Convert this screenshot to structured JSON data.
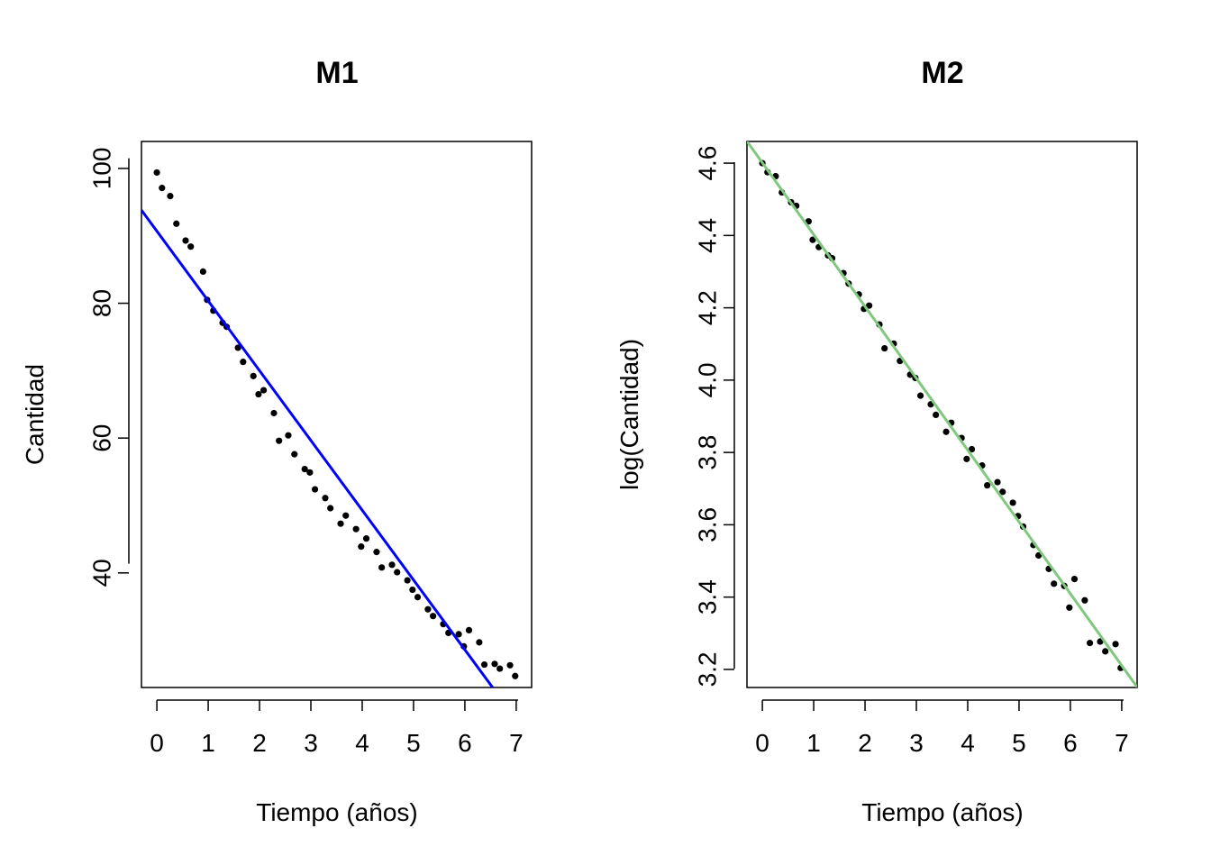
{
  "chart_data": [
    {
      "type": "scatter",
      "title": "M1",
      "xlabel": "Tiempo (años)",
      "ylabel": "Cantidad",
      "xlim": [
        -0.3,
        7.3
      ],
      "ylim": [
        23,
        104
      ],
      "xticks": [
        "0",
        "1",
        "2",
        "3",
        "4",
        "5",
        "6",
        "7"
      ],
      "yticks": [
        "40",
        "60",
        "80",
        "100"
      ],
      "grid": false,
      "points_color": "#000000",
      "line_color": "#0000ff",
      "fit_line": {
        "intercept": 90.7,
        "slope": -10.35
      },
      "x": [
        0.0,
        0.1,
        0.26,
        0.38,
        0.56,
        0.66,
        0.9,
        0.98,
        1.1,
        1.28,
        1.36,
        1.58,
        1.68,
        1.88,
        1.98,
        2.08,
        2.28,
        2.38,
        2.56,
        2.68,
        2.88,
        2.98,
        3.08,
        3.28,
        3.38,
        3.58,
        3.68,
        3.88,
        3.98,
        4.08,
        4.28,
        4.38,
        4.58,
        4.68,
        4.88,
        4.98,
        5.08,
        5.28,
        5.38,
        5.58,
        5.68,
        5.88,
        5.98,
        6.08,
        6.28,
        6.38,
        6.58,
        6.68,
        6.88,
        6.98
      ],
      "y": [
        99.4,
        97.1,
        95.9,
        91.8,
        89.3,
        88.4,
        84.7,
        80.5,
        78.9,
        77.1,
        76.5,
        73.4,
        71.3,
        69.2,
        66.5,
        67.1,
        63.7,
        59.6,
        60.4,
        57.6,
        55.4,
        54.9,
        52.4,
        51.1,
        49.6,
        47.3,
        48.5,
        46.5,
        43.9,
        45.1,
        43.1,
        40.8,
        41.2,
        40.1,
        38.9,
        37.5,
        36.4,
        34.6,
        33.6,
        32.4,
        31.1,
        30.9,
        29.1,
        31.5,
        29.7,
        26.4,
        26.5,
        25.8,
        26.3,
        24.7
      ]
    },
    {
      "type": "scatter",
      "title": "M2",
      "xlabel": "Tiempo (años)",
      "ylabel": "log(Cantidad)",
      "xlim": [
        -0.3,
        7.3
      ],
      "ylim": [
        3.15,
        4.66
      ],
      "xticks": [
        "0",
        "1",
        "2",
        "3",
        "4",
        "5",
        "6",
        "7"
      ],
      "yticks": [
        "3.2",
        "3.4",
        "3.6",
        "3.8",
        "4.0",
        "4.2",
        "4.4",
        "4.6"
      ],
      "grid": false,
      "points_color": "#000000",
      "line_color": "#7fc97f",
      "fit_line": {
        "intercept": 4.601,
        "slope": -0.1986
      },
      "x": [
        0.0,
        0.1,
        0.26,
        0.38,
        0.56,
        0.66,
        0.9,
        0.98,
        1.1,
        1.28,
        1.36,
        1.58,
        1.68,
        1.88,
        1.98,
        2.08,
        2.28,
        2.38,
        2.56,
        2.68,
        2.88,
        2.98,
        3.08,
        3.28,
        3.38,
        3.58,
        3.68,
        3.88,
        3.98,
        4.08,
        4.28,
        4.38,
        4.58,
        4.68,
        4.88,
        4.98,
        5.08,
        5.28,
        5.38,
        5.58,
        5.68,
        5.88,
        5.98,
        6.08,
        6.28,
        6.38,
        6.58,
        6.68,
        6.88,
        6.98
      ],
      "y": [
        4.6,
        4.575,
        4.564,
        4.519,
        4.492,
        4.482,
        4.439,
        4.388,
        4.368,
        4.345,
        4.337,
        4.296,
        4.267,
        4.237,
        4.197,
        4.206,
        4.154,
        4.088,
        4.101,
        4.053,
        4.015,
        4.006,
        3.957,
        3.933,
        3.904,
        3.857,
        3.882,
        3.84,
        3.782,
        3.809,
        3.764,
        3.709,
        3.718,
        3.691,
        3.661,
        3.624,
        3.595,
        3.544,
        3.515,
        3.478,
        3.437,
        3.431,
        3.371,
        3.45,
        3.391,
        3.273,
        3.277,
        3.25,
        3.27,
        3.204
      ]
    }
  ]
}
